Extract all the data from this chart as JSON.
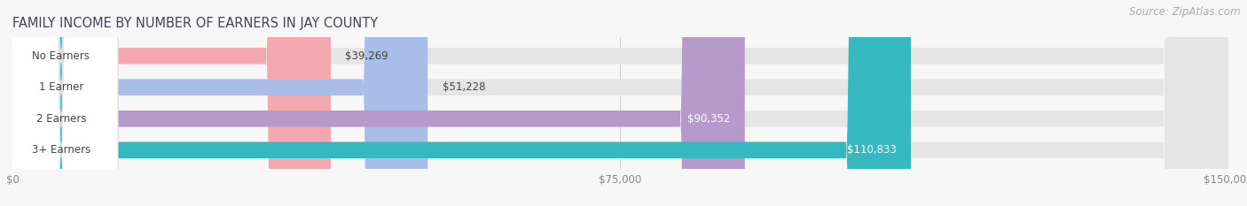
{
  "title": "FAMILY INCOME BY NUMBER OF EARNERS IN JAY COUNTY",
  "source": "Source: ZipAtlas.com",
  "categories": [
    "No Earners",
    "1 Earner",
    "2 Earners",
    "3+ Earners"
  ],
  "values": [
    39269,
    51228,
    90352,
    110833
  ],
  "bar_colors": [
    "#f2a8ae",
    "#a8bde8",
    "#b899cc",
    "#35b8c0"
  ],
  "value_label_colors": [
    "#555555",
    "#555555",
    "#ffffff",
    "#ffffff"
  ],
  "xlim": [
    0,
    150000
  ],
  "xticks": [
    0,
    75000,
    150000
  ],
  "xtick_labels": [
    "$0",
    "$75,000",
    "$150,000"
  ],
  "bg_color": "#f7f7f7",
  "bar_bg_color": "#e5e5e5",
  "title_fontsize": 10.5,
  "source_fontsize": 8.5,
  "value_labels": [
    "$39,269",
    "$51,228",
    "$90,352",
    "$110,833"
  ]
}
